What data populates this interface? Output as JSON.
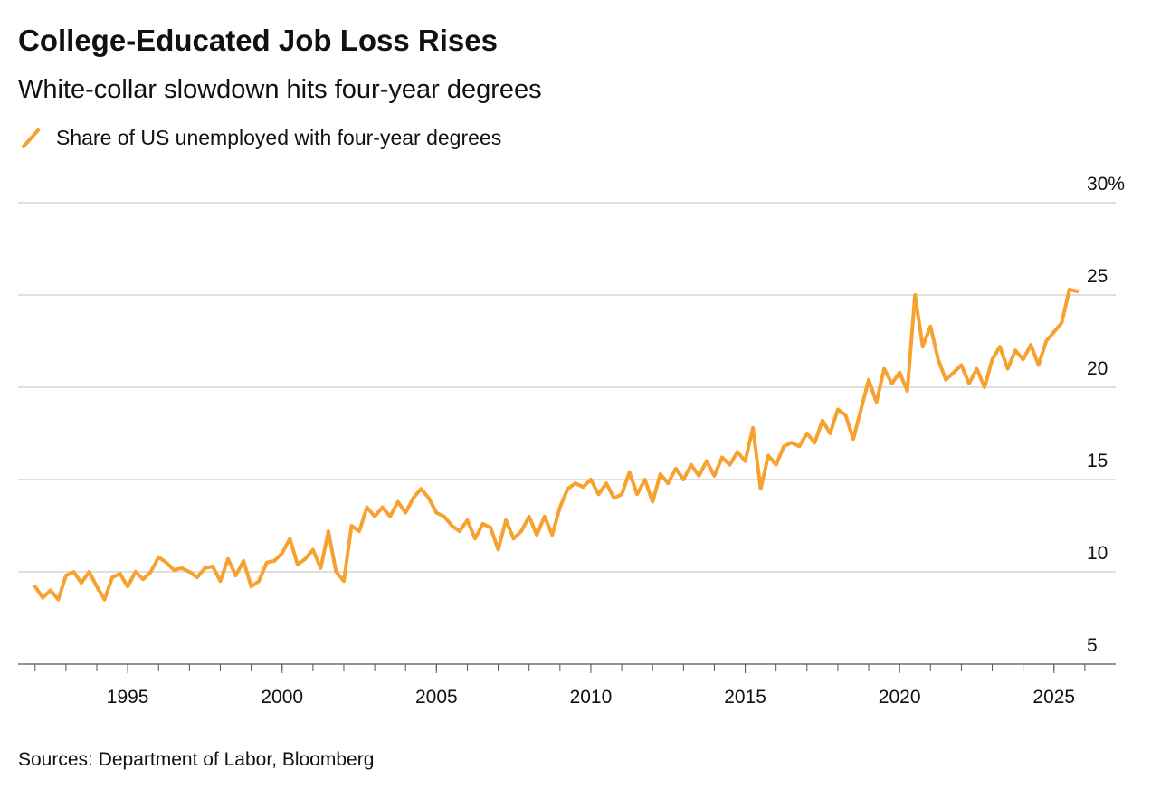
{
  "chart_data": {
    "type": "line",
    "title": "College-Educated Job Loss Rises",
    "subtitle": "White-collar slowdown hits four-year degrees",
    "source": "Sources: Department of Labor, Bloomberg",
    "x": [
      1992,
      1992.25,
      1992.5,
      1992.75,
      1993,
      1993.25,
      1993.5,
      1993.75,
      1994,
      1994.25,
      1994.5,
      1994.75,
      1995,
      1995.25,
      1995.5,
      1995.75,
      1996,
      1996.25,
      1996.5,
      1996.75,
      1997,
      1997.25,
      1997.5,
      1997.75,
      1998,
      1998.25,
      1998.5,
      1998.75,
      1999,
      1999.25,
      1999.5,
      1999.75,
      2000,
      2000.25,
      2000.5,
      2000.75,
      2001,
      2001.25,
      2001.5,
      2001.75,
      2002,
      2002.25,
      2002.5,
      2002.75,
      2003,
      2003.25,
      2003.5,
      2003.75,
      2004,
      2004.25,
      2004.5,
      2004.75,
      2005,
      2005.25,
      2005.5,
      2005.75,
      2006,
      2006.25,
      2006.5,
      2006.75,
      2007,
      2007.25,
      2007.5,
      2007.75,
      2008,
      2008.25,
      2008.5,
      2008.75,
      2009,
      2009.25,
      2009.5,
      2009.75,
      2010,
      2010.25,
      2010.5,
      2010.75,
      2011,
      2011.25,
      2011.5,
      2011.75,
      2012,
      2012.25,
      2012.5,
      2012.75,
      2013,
      2013.25,
      2013.5,
      2013.75,
      2014,
      2014.25,
      2014.5,
      2014.75,
      2015,
      2015.25,
      2015.5,
      2015.75,
      2016,
      2016.25,
      2016.5,
      2016.75,
      2017,
      2017.25,
      2017.5,
      2017.75,
      2018,
      2018.25,
      2018.5,
      2018.75,
      2019,
      2019.25,
      2019.5,
      2019.75,
      2020,
      2020.25,
      2020.5,
      2020.75,
      2021,
      2021.25,
      2021.5,
      2021.75,
      2022,
      2022.25,
      2022.5,
      2022.75,
      2023,
      2023.25,
      2023.5,
      2023.75,
      2024,
      2024.25,
      2024.5,
      2024.75,
      2025,
      2025.25,
      2025.5,
      2025.75
    ],
    "series": [
      {
        "name": "Share of US unemployed with four-year degrees",
        "color": "#f7a12f",
        "values": [
          9.2,
          8.6,
          9.0,
          8.5,
          9.8,
          10.0,
          9.4,
          10.0,
          9.2,
          8.5,
          9.7,
          9.9,
          9.2,
          10.0,
          9.6,
          10.0,
          10.8,
          10.5,
          10.1,
          10.2,
          10.0,
          9.7,
          10.2,
          10.3,
          9.5,
          10.7,
          9.8,
          10.6,
          9.2,
          9.5,
          10.5,
          10.6,
          11.0,
          11.8,
          10.4,
          10.7,
          11.2,
          10.2,
          12.2,
          10.0,
          9.5,
          12.5,
          12.2,
          13.5,
          13.0,
          13.5,
          13.0,
          13.8,
          13.2,
          14.0,
          14.5,
          14.0,
          13.2,
          13.0,
          12.5,
          12.2,
          12.8,
          11.8,
          12.6,
          12.4,
          11.2,
          12.8,
          11.8,
          12.2,
          13.0,
          12.0,
          13.0,
          12.0,
          13.5,
          14.5,
          14.8,
          14.6,
          15.0,
          14.2,
          14.8,
          14.0,
          14.2,
          15.4,
          14.2,
          15.0,
          13.8,
          15.3,
          14.8,
          15.6,
          15.0,
          15.8,
          15.2,
          16.0,
          15.2,
          16.2,
          15.8,
          16.5,
          16.0,
          17.8,
          14.5,
          16.3,
          15.8,
          16.8,
          17.0,
          16.8,
          17.5,
          17.0,
          18.2,
          17.5,
          18.8,
          18.5,
          17.2,
          18.8,
          20.4,
          19.2,
          21.0,
          20.2,
          20.8,
          19.8,
          25.0,
          22.2,
          23.3,
          21.5,
          20.4,
          20.8,
          21.2,
          20.2,
          21.0,
          20.0,
          21.5,
          22.2,
          21.0,
          22.0,
          21.5,
          22.3,
          21.2,
          22.5,
          23.0,
          23.5,
          25.3,
          25.2
        ]
      }
    ],
    "xlim": [
      1991.45,
      2027.0
    ],
    "xticks": [
      1995,
      2000,
      2005,
      2010,
      2015,
      2020,
      2025
    ],
    "minor_xticks": [
      1992,
      1993,
      1994,
      1995,
      1996,
      1997,
      1998,
      1999,
      2000,
      2001,
      2002,
      2003,
      2004,
      2005,
      2006,
      2007,
      2008,
      2009,
      2010,
      2011,
      2012,
      2013,
      2014,
      2015,
      2016,
      2017,
      2018,
      2019,
      2020,
      2021,
      2022,
      2023,
      2024,
      2025,
      2026
    ],
    "ylim": [
      5,
      30
    ],
    "yticks": [
      5,
      10,
      15,
      20,
      25,
      {
        "value": 30,
        "label": "30%"
      }
    ],
    "grid": true
  }
}
